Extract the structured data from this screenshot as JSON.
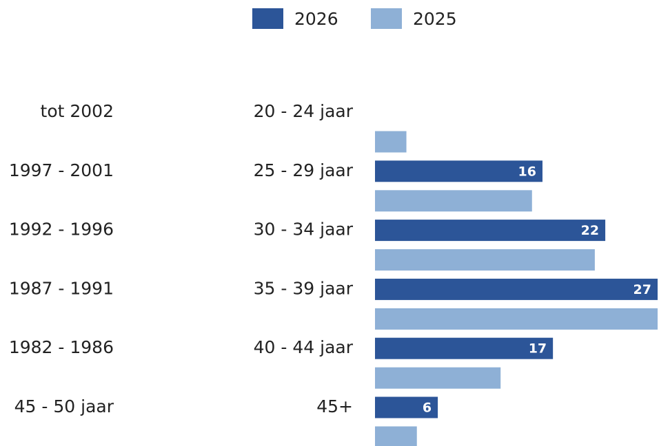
{
  "chart_data": {
    "type": "bar",
    "orientation": "horizontal",
    "categories": [
      "20 - 24 jaar",
      "25 - 29 jaar",
      "30 - 34 jaar",
      "35 - 39 jaar",
      "40 - 44 jaar",
      "45+"
    ],
    "cohorts": [
      "tot 2002",
      "1997 - 2001",
      "1992 - 1996",
      "1987 - 1991",
      "1982 - 1986",
      "45 - 50 jaar"
    ],
    "series": [
      {
        "name": "2026",
        "color": "#2c5598",
        "values": [
          null,
          16,
          22,
          27,
          17,
          6
        ]
      },
      {
        "name": "2025",
        "color": "#8eb0d6",
        "values": [
          3,
          15,
          21,
          27,
          12,
          4
        ]
      }
    ],
    "legend": "top"
  }
}
